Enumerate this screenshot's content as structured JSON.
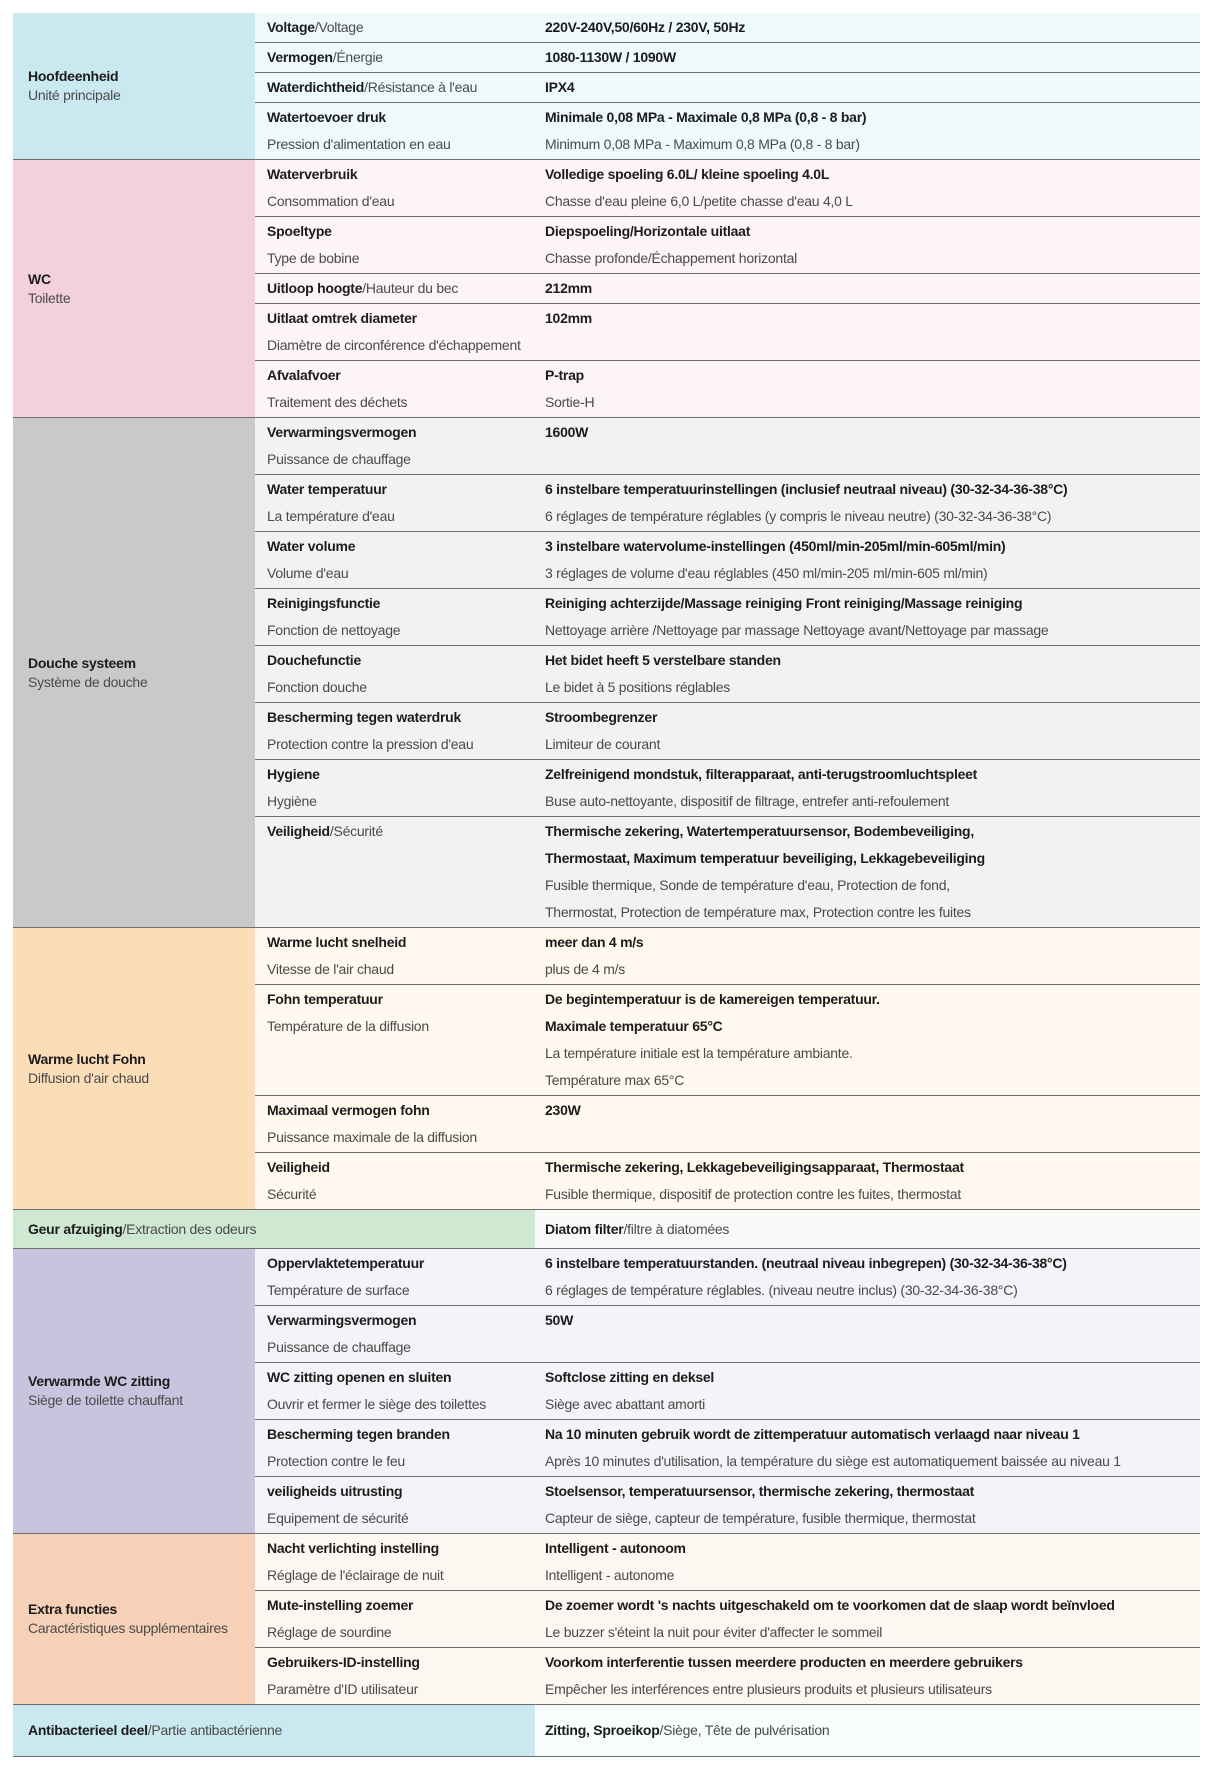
{
  "sections": [
    {
      "name_nl": "Hoofdeenheid",
      "name_fr": "Unité principale",
      "bg_left": "#c9e8f0",
      "bg_right": "#eef9fb",
      "rows": [
        {
          "label": [
            {
              "b": "Voltage",
              "l": "/Voltage"
            }
          ],
          "value": [
            {
              "b": "220V-240V,50/60Hz / 230V, 50Hz"
            }
          ]
        },
        {
          "label": [
            {
              "b": "Vermogen",
              "l": "/Énergie"
            }
          ],
          "value": [
            {
              "b": "1080-1130W / 1090W"
            }
          ]
        },
        {
          "label": [
            {
              "b": "Waterdichtheid",
              "l": "/Résistance à l'eau"
            }
          ],
          "value": [
            {
              "b": "IPX4"
            }
          ]
        },
        {
          "label": [
            {
              "b": "Watertoevoer druk"
            },
            {
              "l": "Pression d'alimentation en eau"
            }
          ],
          "value": [
            {
              "b": "Minimale 0,08 MPa - Maximale 0,8 MPa   (0,8 - 8 bar)"
            },
            {
              "l": "Minimum 0,08 MPa - Maximum 0,8 MPa (0,8 - 8 bar)"
            }
          ]
        }
      ]
    },
    {
      "name_nl": "WC",
      "name_fr": "Toilette",
      "bg_left": "#f4d0db",
      "bg_right": "#fdf4f6",
      "rows": [
        {
          "label": [
            {
              "b": "Waterverbruik"
            },
            {
              "l": "Consommation d'eau"
            }
          ],
          "value": [
            {
              "b": "Volledige spoeling 6.0L/ kleine spoeling 4.0L"
            },
            {
              "l": "Chasse d'eau pleine 6,0 L/petite chasse d'eau 4,0 L"
            }
          ]
        },
        {
          "label": [
            {
              "b": "Spoeltype"
            },
            {
              "l": "Type de bobine"
            }
          ],
          "value": [
            {
              "b": "Diepspoeling/Horizontale uitlaat"
            },
            {
              "l": "Chasse profonde/Échappement horizontal"
            }
          ]
        },
        {
          "label": [
            {
              "b": "Uitloop hoogte",
              "l": "/Hauteur du bec"
            }
          ],
          "value": [
            {
              "b": "212mm"
            }
          ]
        },
        {
          "label": [
            {
              "b": "Uitlaat omtrek diameter"
            },
            {
              "l": "Diamètre de circonférence d'échappement"
            }
          ],
          "value": [
            {
              "b": "102mm"
            }
          ]
        },
        {
          "label": [
            {
              "b": "Afvalafvoer"
            },
            {
              "l": "Traitement des déchets"
            }
          ],
          "value": [
            {
              "b": "P-trap"
            },
            {
              "l": "Sortie-H"
            }
          ]
        }
      ]
    },
    {
      "name_nl": "Douche systeem",
      "name_fr": "Système de douche",
      "bg_left": "#c9c9c9",
      "bg_right": "#f2f2f2",
      "rows": [
        {
          "label": [
            {
              "b": "Verwarmingsvermogen"
            },
            {
              "l": "Puissance de chauffage"
            }
          ],
          "value": [
            {
              "b": "1600W"
            }
          ]
        },
        {
          "label": [
            {
              "b": "Water temperatuur"
            },
            {
              "l": "La température d'eau"
            }
          ],
          "value": [
            {
              "b": "6 instelbare temperatuurinstellingen (inclusief neutraal niveau) (30-32-34-36-38°C)"
            },
            {
              "l": "6 réglages de température réglables (y compris le niveau neutre) (30-32-34-36-38°C)"
            }
          ]
        },
        {
          "label": [
            {
              "b": "Water volume"
            },
            {
              "l": "Volume d'eau"
            }
          ],
          "value": [
            {
              "b": "3 instelbare watervolume-instellingen (450ml/min-205ml/min-605ml/min)"
            },
            {
              "l": "3 réglages de volume d'eau réglables (450 ml/min-205 ml/min-605 ml/min)"
            }
          ]
        },
        {
          "label": [
            {
              "b": "Reinigingsfunctie"
            },
            {
              "l": "Fonction de nettoyage"
            }
          ],
          "value": [
            {
              "b": "Reiniging achterzijde/Massage reiniging Front reiniging/Massage reiniging"
            },
            {
              "l": "Nettoyage arrière /Nettoyage par massage Nettoyage avant/Nettoyage par massage"
            }
          ]
        },
        {
          "label": [
            {
              "b": "Douchefunctie"
            },
            {
              "l": "Fonction douche"
            }
          ],
          "value": [
            {
              "b": "Het bidet heeft 5 verstelbare standen"
            },
            {
              "l": "Le bidet à 5 positions réglables"
            }
          ]
        },
        {
          "label": [
            {
              "b": "Bescherming tegen waterdruk"
            },
            {
              "l": "Protection contre la pression d'eau"
            }
          ],
          "value": [
            {
              "b": "Stroombegrenzer"
            },
            {
              "l": "Limiteur de courant"
            }
          ]
        },
        {
          "label": [
            {
              "b": "Hygiene"
            },
            {
              "l": "Hygiène"
            }
          ],
          "value": [
            {
              "b": "Zelfreinigend mondstuk, filterapparaat, anti-terugstroomluchtspleet"
            },
            {
              "l": "Buse auto-nettoyante, dispositif de filtrage, entrefer anti-refoulement"
            }
          ]
        },
        {
          "label": [
            {
              "b": "Veiligheid",
              "l": "/Sécurité"
            }
          ],
          "value": [
            {
              "b": "Thermische zekering, Watertemperatuursensor, Bodembeveiliging,"
            },
            {
              "b": "Thermostaat, Maximum temperatuur beveiliging, Lekkagebeveiliging"
            },
            {
              "l": "Fusible thermique, Sonde de température d'eau, Protection de fond,"
            },
            {
              "l": "Thermostat, Protection de température max, Protection contre les fuites"
            }
          ]
        }
      ]
    },
    {
      "name_nl": "Warme lucht Fohn",
      "name_fr": "Diffusion d'air chaud",
      "bg_left": "#fbddb8",
      "bg_right": "#fef8ef",
      "rows": [
        {
          "label": [
            {
              "b": "Warme lucht snelheid"
            },
            {
              "l": "Vitesse de l'air chaud"
            }
          ],
          "value": [
            {
              "b": "meer dan 4 m/s"
            },
            {
              "l": "plus de 4 m/s"
            }
          ]
        },
        {
          "label": [
            {
              "b": "Fohn temperatuur"
            },
            {
              "l": "Température de la diffusion"
            }
          ],
          "value": [
            {
              "b": "De begintemperatuur is de kamereigen temperatuur."
            },
            {
              "b": "Maximale temperatuur 65°C"
            },
            {
              "l": "La température initiale est la température ambiante."
            },
            {
              "l": "Température max 65°C"
            }
          ]
        },
        {
          "label": [
            {
              "b": "Maximaal vermogen fohn"
            },
            {
              "l": "Puissance maximale de la diffusion"
            }
          ],
          "value": [
            {
              "b": "230W"
            }
          ]
        },
        {
          "label": [
            {
              "b": "Veiligheid"
            },
            {
              "l": "Sécurité"
            }
          ],
          "value": [
            {
              "b": "Thermische zekering, Lekkagebeveiligingsapparaat, Thermostaat"
            },
            {
              "l": "Fusible thermique, dispositif de protection contre les fuites, thermostat"
            }
          ]
        }
      ]
    },
    {
      "merged": true,
      "name_nl": "Geur afzuiging",
      "name_fr": "/Extraction des odeurs",
      "bg_left": "#cfe8d2",
      "bg_right": "#f8faf8",
      "value": {
        "b": "Diatom filter",
        "l": "/filtre à diatomées"
      }
    },
    {
      "name_nl": "Verwarmde WC zitting",
      "name_fr": "Siège de toilette chauffant",
      "bg_left": "#c9c4de",
      "bg_right": "#f3f3f8",
      "rows": [
        {
          "label": [
            {
              "b": "Oppervlaktetemperatuur"
            },
            {
              "l": "Température de surface"
            }
          ],
          "value": [
            {
              "b": "6 instelbare temperatuurstanden. (neutraal niveau inbegrepen) (30-32-34-36-38°C)"
            },
            {
              "l": "6 réglages de température réglables. (niveau neutre inclus) (30-32-34-36-38°C)"
            }
          ]
        },
        {
          "label": [
            {
              "b": "Verwarmingsvermogen"
            },
            {
              "l": "Puissance de chauffage"
            }
          ],
          "value": [
            {
              "b": "50W"
            }
          ]
        },
        {
          "label": [
            {
              "b": "WC zitting openen en sluiten"
            },
            {
              "l": "Ouvrir et fermer le siège des toilettes"
            }
          ],
          "value": [
            {
              "b": "Softclose zitting en deksel"
            },
            {
              "l": "Siège avec abattant amorti"
            }
          ]
        },
        {
          "label": [
            {
              "b": "Bescherming tegen branden"
            },
            {
              "l": "Protection contre le feu"
            }
          ],
          "value": [
            {
              "b": "Na 10 minuten gebruik wordt de zittemperatuur automatisch verlaagd naar niveau 1"
            },
            {
              "l": "Après 10 minutes d'utilisation, la température du siège est automatiquement baissée au niveau 1"
            }
          ]
        },
        {
          "label": [
            {
              "b": "veiligheids uitrusting"
            },
            {
              "l": "Equipement de sécurité"
            }
          ],
          "value": [
            {
              "b": "Stoelsensor, temperatuursensor, thermische zekering, thermostaat"
            },
            {
              "l": "Capteur de siège, capteur de température, fusible thermique, thermostat"
            }
          ]
        }
      ]
    },
    {
      "name_nl": "Extra functies",
      "name_fr": "Caractéristiques supplémentaires",
      "bg_left": "#f6d0b7",
      "bg_right": "#fdf7f1",
      "rows": [
        {
          "label": [
            {
              "b": "Nacht verlichting instelling"
            },
            {
              "l": "Réglage de l'éclairage de nuit"
            }
          ],
          "value": [
            {
              "b": "Intelligent - autonoom"
            },
            {
              "l": "Intelligent - autonome"
            }
          ]
        },
        {
          "label": [
            {
              "b": "Mute-instelling zoemer"
            },
            {
              "l": "Réglage de sourdine"
            }
          ],
          "value": [
            {
              "b": "De zoemer wordt 's nachts uitgeschakeld om te voorkomen dat de slaap  wordt beïnvloed"
            },
            {
              "l": "Le buzzer s'éteint la nuit pour éviter d'affecter le sommeil"
            }
          ]
        },
        {
          "label": [
            {
              "b": "Gebruikers-ID-instelling"
            },
            {
              "l": "Paramètre d'ID utilisateur"
            }
          ],
          "value": [
            {
              "b": "Voorkom interferentie tussen meerdere producten en meerdere gebruikers"
            },
            {
              "l": "Empêcher les interférences entre plusieurs produits et plusieurs utilisateurs"
            }
          ]
        }
      ]
    },
    {
      "merged": true,
      "name_nl": "Antibacterieel deel",
      "name_fr": "/Partie antibactérienne",
      "bg_left": "#c9e8f0",
      "bg_right": "#f7fcfd",
      "value": {
        "b": "Zitting, Sproeikop",
        "l": "/Siège, Tête de pulvérisation"
      }
    }
  ]
}
